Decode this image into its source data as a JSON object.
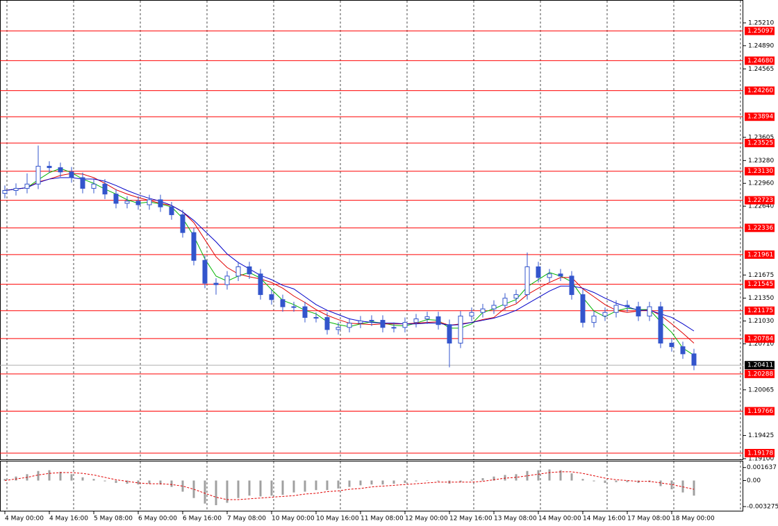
{
  "chart_data": {
    "type": "candlestick",
    "color": "#3355cc",
    "ylim": [
      1.1909,
      1.25482
    ],
    "yticks": [
      {
        "value": 1.2521,
        "label": "1.25210"
      },
      {
        "value": 1.2489,
        "label": "1.24890"
      },
      {
        "value": 1.24565,
        "label": "1.24565"
      },
      {
        "value": 1.23605,
        "label": "1.23605"
      },
      {
        "value": 1.2328,
        "label": "1.23280"
      },
      {
        "value": 1.2296,
        "label": "1.22960"
      },
      {
        "value": 1.2264,
        "label": "1.22640"
      },
      {
        "value": 1.21675,
        "label": "1.21675"
      },
      {
        "value": 1.2135,
        "label": "1.21350"
      },
      {
        "value": 1.2103,
        "label": "1.21030"
      },
      {
        "value": 1.2071,
        "label": "1.20710"
      },
      {
        "value": 1.20065,
        "label": "1.20065"
      },
      {
        "value": 1.19425,
        "label": "1.19425"
      },
      {
        "value": 1.191,
        "label": "1.19100"
      }
    ],
    "xticks": [
      {
        "value": 0,
        "label": "4 May 00:00"
      },
      {
        "value": 4,
        "label": "4 May 16:00"
      },
      {
        "value": 8,
        "label": "5 May 08:00"
      },
      {
        "value": 12,
        "label": "6 May 00:00"
      },
      {
        "value": 16,
        "label": "6 May 16:00"
      },
      {
        "value": 20,
        "label": "7 May 08:00"
      },
      {
        "value": 24,
        "label": "10 May 00:00"
      },
      {
        "value": 28,
        "label": "10 May 16:00"
      },
      {
        "value": 32,
        "label": "11 May 08:00"
      },
      {
        "value": 36,
        "label": "12 May 00:00"
      },
      {
        "value": 40,
        "label": "12 May 16:00"
      },
      {
        "value": 44,
        "label": "13 May 08:00"
      },
      {
        "value": 48,
        "label": "14 May 00:00"
      },
      {
        "value": 52,
        "label": "14 May 16:00"
      },
      {
        "value": 56,
        "label": "17 May 08:00"
      },
      {
        "value": 60,
        "label": "18 May 00:00"
      }
    ],
    "open": [
      1.2282,
      1.2286,
      1.2289,
      1.2295,
      1.232,
      1.2318,
      1.2312,
      1.2304,
      1.2289,
      1.2295,
      1.2281,
      1.2268,
      1.2271,
      1.2266,
      1.2273,
      1.2263,
      1.2252,
      1.2227,
      1.2188,
      1.2156,
      1.2154,
      1.2166,
      1.2179,
      1.2169,
      1.214,
      1.2133,
      1.2123,
      1.2123,
      1.2108,
      1.2108,
      1.2091,
      1.2094,
      1.21,
      1.2103,
      1.2104,
      1.2094,
      1.2094,
      1.2101,
      1.2106,
      1.2109,
      1.2098,
      1.2072,
      1.211,
      1.2115,
      1.212,
      1.2125,
      1.2135,
      1.214,
      1.2179,
      1.2164,
      1.2169,
      1.2166,
      1.214,
      1.2101,
      1.211,
      1.2115,
      1.2125,
      1.2123,
      1.211,
      1.2123,
      1.2072,
      1.2067,
      1.2057
    ],
    "high": [
      1.2293,
      1.2296,
      1.231,
      1.2349,
      1.2327,
      1.2325,
      1.2319,
      1.2311,
      1.2302,
      1.2302,
      1.2288,
      1.2278,
      1.2278,
      1.228,
      1.228,
      1.227,
      1.2259,
      1.2234,
      1.2195,
      1.2163,
      1.2173,
      1.2186,
      1.2186,
      1.2176,
      1.2147,
      1.214,
      1.213,
      1.213,
      1.2115,
      1.2115,
      1.2101,
      1.2107,
      1.211,
      1.2111,
      1.2111,
      1.2101,
      1.2108,
      1.2113,
      1.2116,
      1.2116,
      1.2105,
      1.2117,
      1.2122,
      1.2127,
      1.2132,
      1.2142,
      1.2147,
      1.2199,
      1.2186,
      1.2176,
      1.2176,
      1.2173,
      1.2147,
      1.2117,
      1.2122,
      1.2132,
      1.2132,
      1.213,
      1.213,
      1.213,
      1.2079,
      1.2074,
      1.2064
    ],
    "low": [
      1.2275,
      1.2279,
      1.2282,
      1.2288,
      1.2311,
      1.2305,
      1.2297,
      1.2282,
      1.2282,
      1.2274,
      1.2261,
      1.2261,
      1.2259,
      1.2259,
      1.2256,
      1.2245,
      1.222,
      1.2181,
      1.2149,
      1.214,
      1.2147,
      1.2159,
      1.2162,
      1.2133,
      1.2126,
      1.2116,
      1.2116,
      1.2101,
      1.2101,
      1.2084,
      1.2084,
      1.2087,
      1.2093,
      1.2096,
      1.2087,
      1.2087,
      1.2087,
      1.2094,
      1.2099,
      1.2091,
      1.2038,
      1.2065,
      1.2103,
      1.2108,
      1.2113,
      1.2118,
      1.2128,
      1.2133,
      1.2157,
      1.2157,
      1.2159,
      1.2133,
      1.2094,
      1.2094,
      1.2103,
      1.2108,
      1.2116,
      1.2103,
      1.2103,
      1.2065,
      1.206,
      1.205,
      1.2034
    ],
    "close": [
      1.2286,
      1.2289,
      1.2295,
      1.232,
      1.2318,
      1.2312,
      1.2304,
      1.2289,
      1.2295,
      1.2281,
      1.2268,
      1.2271,
      1.2266,
      1.2273,
      1.2263,
      1.2252,
      1.2227,
      1.2188,
      1.2156,
      1.2154,
      1.2166,
      1.2179,
      1.2169,
      1.214,
      1.2133,
      1.2123,
      1.2123,
      1.2108,
      1.2108,
      1.2091,
      1.2094,
      1.21,
      1.2103,
      1.2104,
      1.2094,
      1.2094,
      1.2101,
      1.2106,
      1.2109,
      1.2098,
      1.2072,
      1.211,
      1.2115,
      1.212,
      1.2125,
      1.2135,
      1.214,
      1.2179,
      1.2164,
      1.2169,
      1.2166,
      1.214,
      1.2101,
      1.211,
      1.2115,
      1.2125,
      1.2123,
      1.211,
      1.2123,
      1.2072,
      1.2067,
      1.2057,
      1.2041
    ],
    "lines": [
      {
        "color": "#00b400",
        "values": [
          1.2286,
          1.2288,
          1.229,
          1.2301,
          1.2311,
          1.2317,
          1.2311,
          1.2302,
          1.2296,
          1.2288,
          1.2281,
          1.2273,
          1.2268,
          1.227,
          1.2267,
          1.2263,
          1.2247,
          1.2222,
          1.219,
          1.2166,
          1.2159,
          1.2166,
          1.2171,
          1.2163,
          1.2147,
          1.2132,
          1.2126,
          1.2118,
          1.2113,
          1.2102,
          1.2098,
          1.2095,
          1.2099,
          1.2102,
          1.21,
          1.2097,
          1.2096,
          1.21,
          1.2105,
          1.2104,
          1.2093,
          1.2093,
          1.2099,
          1.2115,
          1.212,
          1.2127,
          1.2133,
          1.2151,
          1.2161,
          1.2171,
          1.2166,
          1.2158,
          1.2136,
          1.2117,
          1.2109,
          1.2117,
          1.2121,
          1.2119,
          1.2119,
          1.2102,
          1.2087,
          1.2065,
          1.2055
        ]
      },
      {
        "color": "#e00000",
        "values": [
          1.2286,
          1.2288,
          1.229,
          1.2298,
          1.2302,
          1.2307,
          1.231,
          1.2309,
          1.2304,
          1.2296,
          1.2287,
          1.2281,
          1.2276,
          1.2272,
          1.2268,
          1.2265,
          1.2256,
          1.2241,
          1.2217,
          1.2193,
          1.2178,
          1.2169,
          1.2165,
          1.2162,
          1.2157,
          1.2149,
          1.2138,
          1.2129,
          1.2119,
          1.2111,
          1.2105,
          1.21,
          1.2099,
          1.2098,
          1.2099,
          1.2099,
          1.2099,
          1.21,
          1.2101,
          1.2102,
          1.2097,
          1.2099,
          1.2101,
          1.2105,
          1.2108,
          1.2121,
          1.2127,
          1.214,
          1.2149,
          1.2157,
          1.2164,
          1.2164,
          1.2148,
          1.2137,
          1.2126,
          1.2118,
          1.2115,
          1.2117,
          1.2119,
          1.2111,
          1.2099,
          1.2086,
          1.2072
        ]
      },
      {
        "color": "#0000c8",
        "values": [
          1.2286,
          1.2288,
          1.229,
          1.2297,
          1.2302,
          1.2304,
          1.2304,
          1.2302,
          1.2302,
          1.2299,
          1.2293,
          1.2286,
          1.228,
          1.2275,
          1.2271,
          1.2265,
          1.2256,
          1.2244,
          1.2229,
          1.2214,
          1.2197,
          1.2185,
          1.2176,
          1.2167,
          1.2161,
          1.2153,
          1.2148,
          1.2137,
          1.2126,
          1.2118,
          1.2112,
          1.2106,
          1.2103,
          1.2101,
          1.21,
          1.21,
          1.2099,
          1.2099,
          1.21,
          1.21,
          1.2097,
          1.2098,
          1.2101,
          1.2104,
          1.2107,
          1.2112,
          1.2118,
          1.2127,
          1.2136,
          1.2145,
          1.2152,
          1.2152,
          1.2149,
          1.2143,
          1.2135,
          1.2128,
          1.2123,
          1.2118,
          1.2118,
          1.2113,
          1.2108,
          1.2099,
          1.2089
        ]
      }
    ],
    "levels": {
      "color": "#ff0000",
      "values": [
        1.25097,
        1.2468,
        1.2426,
        1.23894,
        1.23525,
        1.2313,
        1.22723,
        1.22336,
        1.21961,
        1.21545,
        1.21175,
        1.20784,
        1.20288,
        1.19766,
        1.19178
      ],
      "value_labels": [
        "1.25097",
        "1.24680",
        "1.24260",
        "1.23894",
        "1.23525",
        "1.23130",
        "1.22723",
        "1.22336",
        "1.21961",
        "1.21545",
        "1.21175",
        "1.20784",
        "1.20288",
        "1.19766",
        "1.19178"
      ]
    },
    "current_price": 1.20411,
    "indicator": {
      "type": "histogram",
      "color": "#a0a0a0",
      "y2lim": [
        -0.0038,
        0.0024
      ],
      "y2ticks": [
        0.001637,
        {
          "value": 0,
          "label": "0.00"
        },
        -0.003275
      ],
      "values": [
        0.0002,
        0.0005,
        0.0008,
        0.0012,
        0.0013,
        0.0011,
        0.0008,
        0.0004,
        0.0002,
        -0.0001,
        -0.0003,
        -0.0004,
        -0.0005,
        -0.0004,
        -0.0005,
        -0.0008,
        -0.0014,
        -0.0022,
        -0.0029,
        -0.0031,
        -0.0028,
        -0.0022,
        -0.0019,
        -0.002,
        -0.0019,
        -0.0018,
        -0.0015,
        -0.0014,
        -0.0012,
        -0.0012,
        -0.001,
        -0.0008,
        -0.0006,
        -0.0005,
        -0.0005,
        -0.0004,
        -0.0003,
        -0.0001,
        0,
        -0.0001,
        -0.0004,
        -0.0002,
        0.0001,
        0.0003,
        0.0005,
        0.0007,
        0.0008,
        0.0012,
        0.0013,
        0.0014,
        0.0013,
        0.0009,
        0.0002,
        -0.0001,
        -0.0003,
        -0.0002,
        -0.0002,
        -0.0003,
        -0.0002,
        -0.0007,
        -0.0011,
        -0.0015,
        -0.0019
      ],
      "signal": {
        "color": "#e00000",
        "values": [
          0,
          0.0002,
          0.0004,
          0.0007,
          0.0009,
          0.001,
          0.001,
          0.0009,
          0.0007,
          0.0004,
          0.0001,
          -0.0001,
          -0.0003,
          -0.0004,
          -0.0004,
          -0.0005,
          -0.0007,
          -0.0011,
          -0.0016,
          -0.0021,
          -0.0024,
          -0.0024,
          -0.0023,
          -0.0022,
          -0.0021,
          -0.002,
          -0.0019,
          -0.0017,
          -0.0016,
          -0.0014,
          -0.0013,
          -0.0011,
          -0.001,
          -0.0008,
          -0.0007,
          -0.0006,
          -0.0005,
          -0.0004,
          -0.0003,
          -0.0002,
          -0.0002,
          -0.0002,
          -0.0002,
          -0.0001,
          0.0001,
          0.0003,
          0.0004,
          0.0006,
          0.0008,
          0.001,
          0.0011,
          0.0011,
          0.0009,
          0.0006,
          0.0003,
          0.0001,
          0,
          -0.0001,
          -0.0001,
          -0.0003,
          -0.0005,
          -0.0008,
          -0.0011
        ]
      }
    }
  }
}
